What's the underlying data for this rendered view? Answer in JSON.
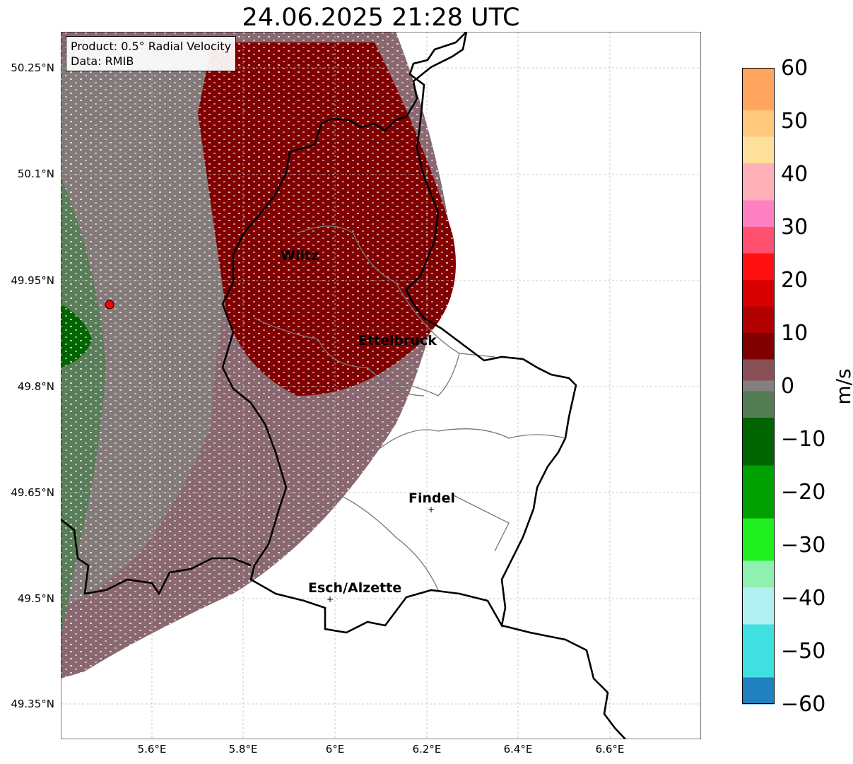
{
  "title": "24.06.2025 21:28 UTC",
  "info": {
    "product": "Product: 0.5° Radial Velocity",
    "source": "Data: RMIB"
  },
  "axes": {
    "lat_labels": [
      "50.25°N",
      "50.1°N",
      "49.95°N",
      "49.8°N",
      "49.65°N",
      "49.5°N",
      "49.35°N"
    ],
    "lon_labels": [
      "5.6°E",
      "5.8°E",
      "6°E",
      "6.2°E",
      "6.4°E",
      "6.6°E"
    ]
  },
  "cities": [
    {
      "name": "Wiltz"
    },
    {
      "name": "Ettelbruck"
    },
    {
      "name": "Findel"
    },
    {
      "name": "Esch/Alzette"
    }
  ],
  "colorbar": {
    "unit": "m/s",
    "ticks": [
      "60",
      "50",
      "40",
      "30",
      "20",
      "10",
      "0",
      "−10",
      "−20",
      "−30",
      "−40",
      "−50",
      "−60"
    ],
    "colors": {
      "p60": "#ffa560",
      "p50": "#ffc87c",
      "p45": "#ffe09a",
      "p40": "#ffb0b8",
      "p35": "#ff80c0",
      "p30": "#ff5070",
      "p25": "#ff1010",
      "p20": "#d80000",
      "p15": "#b00000",
      "p10": "#800000",
      "p5": "#8a5058",
      "p0": "#858080",
      "n5": "#557d55",
      "n10": "#006400",
      "n20": "#00a000",
      "n30": "#20f020",
      "n35": "#90f0b0",
      "n40": "#b0f0f0",
      "n50": "#40e0e0",
      "n60": "#2080c0"
    }
  },
  "radar": {
    "site_color": "#ff0000"
  }
}
